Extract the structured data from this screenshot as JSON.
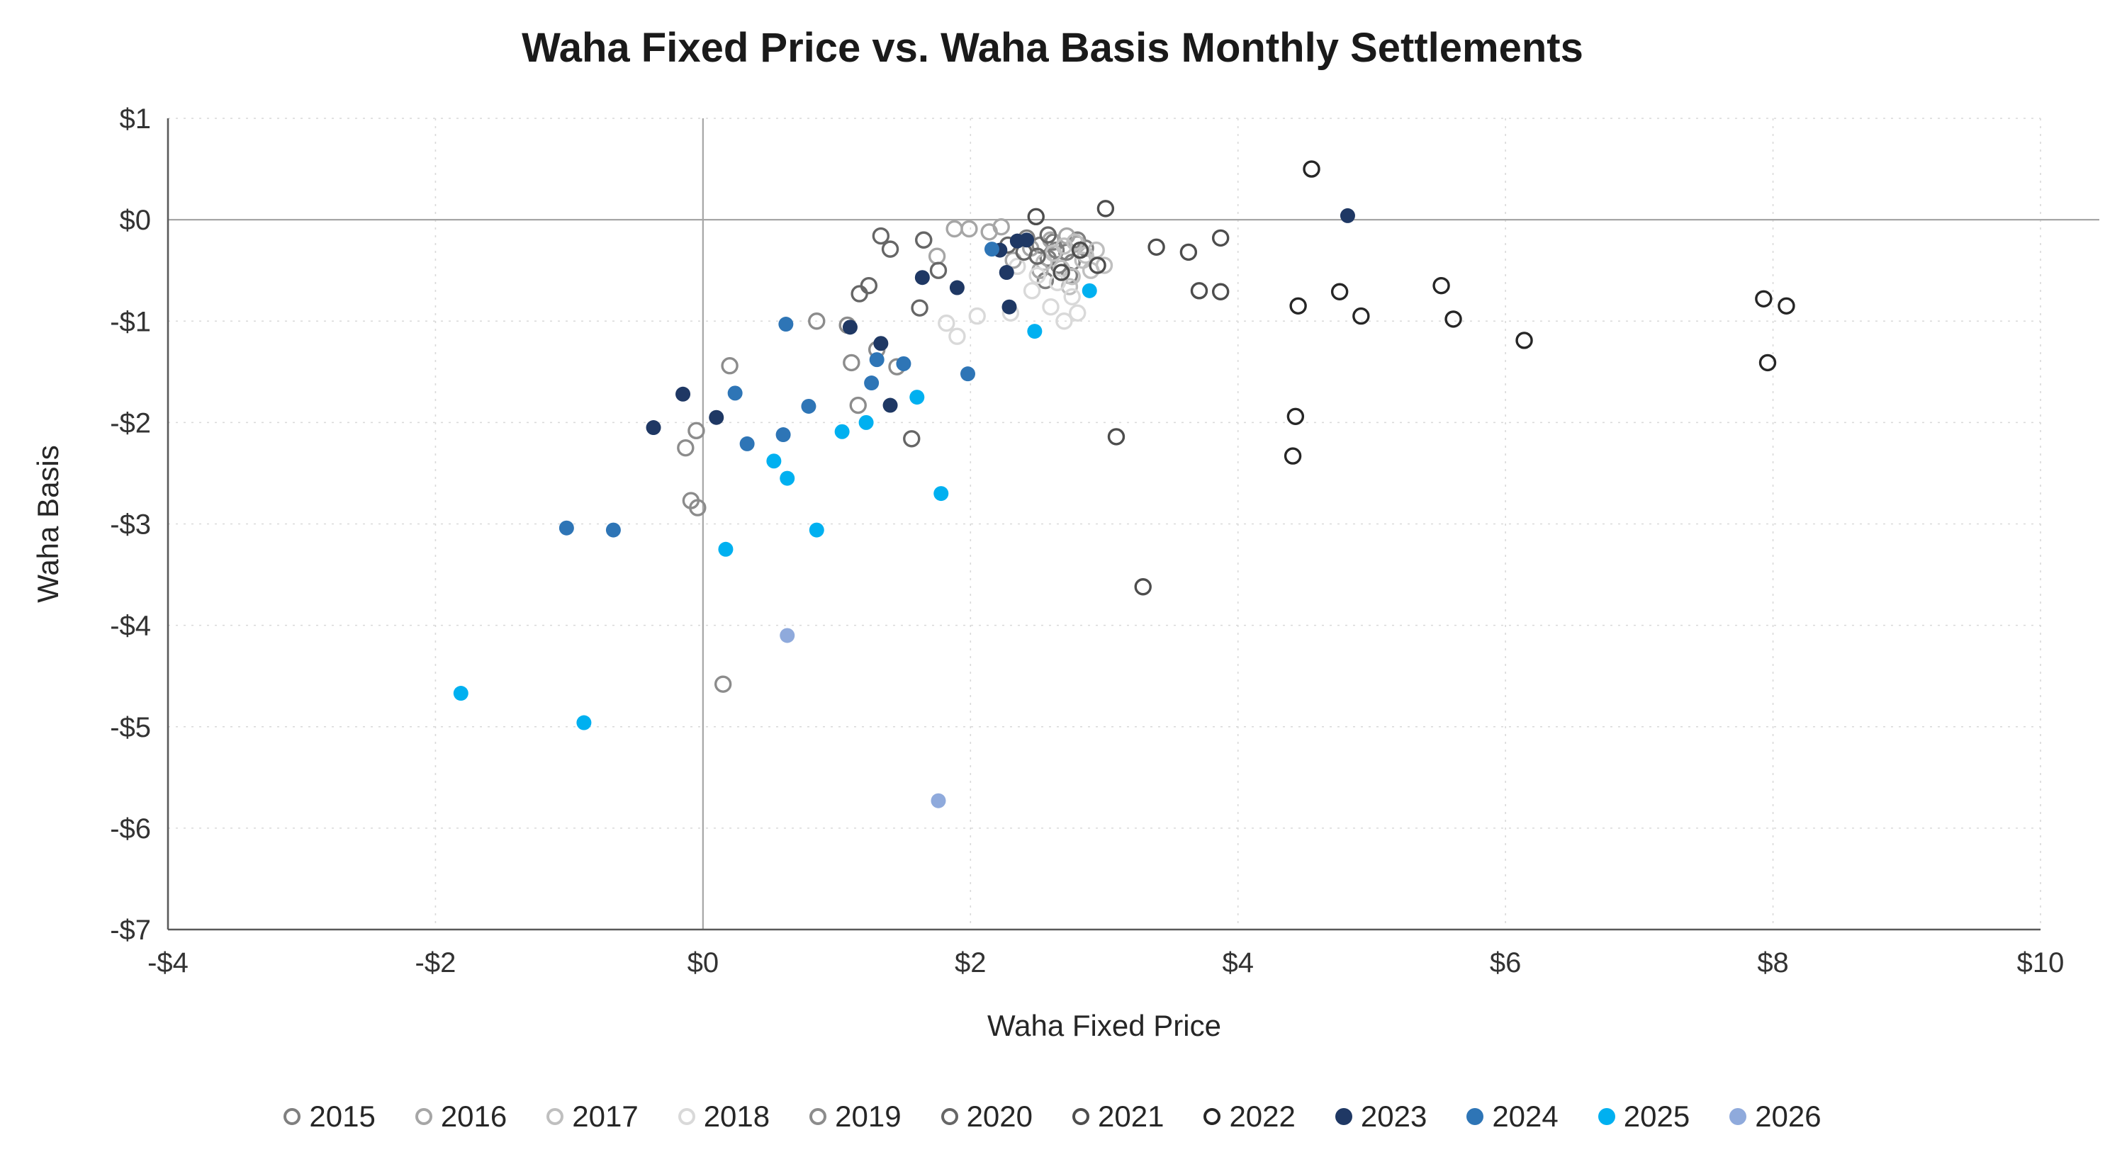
{
  "chart_data": {
    "type": "scatter",
    "title": "Waha Fixed Price vs. Waha Basis Monthly Settlements",
    "xlabel": "Waha Fixed Price",
    "ylabel": "Waha Basis",
    "xlim": [
      -4,
      10
    ],
    "ylim": [
      -7,
      1
    ],
    "grid": true,
    "legend_position": "bottom",
    "x_ticks": [
      {
        "value": -4,
        "label": "-$4"
      },
      {
        "value": -2,
        "label": "-$2"
      },
      {
        "value": 0,
        "label": "$0"
      },
      {
        "value": 2,
        "label": "$2"
      },
      {
        "value": 4,
        "label": "$4"
      },
      {
        "value": 6,
        "label": "$6"
      },
      {
        "value": 8,
        "label": "$8"
      },
      {
        "value": 10,
        "label": "$10"
      }
    ],
    "y_ticks": [
      {
        "value": 1,
        "label": "$1"
      },
      {
        "value": 0,
        "label": "$0"
      },
      {
        "value": -1,
        "label": "-$1"
      },
      {
        "value": -2,
        "label": "-$2"
      },
      {
        "value": -3,
        "label": "-$3"
      },
      {
        "value": -4,
        "label": "-$4"
      },
      {
        "value": -5,
        "label": "-$5"
      },
      {
        "value": -6,
        "label": "-$6"
      },
      {
        "value": -7,
        "label": "-$7"
      }
    ],
    "series": [
      {
        "name": "2015",
        "marker": "open",
        "color": "#7f7f7f",
        "points": [
          [
            2.42,
            -0.18
          ],
          [
            2.52,
            -0.25
          ],
          [
            2.62,
            -0.22
          ],
          [
            2.72,
            -0.32
          ],
          [
            2.8,
            -0.2
          ],
          [
            2.58,
            -0.38
          ],
          [
            2.66,
            -0.45
          ],
          [
            2.74,
            -0.55
          ],
          [
            2.56,
            -0.6
          ],
          [
            2.64,
            -0.3
          ],
          [
            2.76,
            -0.42
          ],
          [
            2.86,
            -0.28
          ]
        ]
      },
      {
        "name": "2016",
        "marker": "open",
        "color": "#a6a6a6",
        "points": [
          [
            1.75,
            -0.36
          ],
          [
            1.88,
            -0.09
          ],
          [
            1.99,
            -0.09
          ],
          [
            2.14,
            -0.12
          ],
          [
            2.23,
            -0.07
          ],
          [
            2.45,
            -0.28
          ],
          [
            2.6,
            -0.2
          ],
          [
            2.72,
            -0.16
          ],
          [
            2.32,
            -0.4
          ],
          [
            1.65,
            -0.2
          ],
          [
            2.52,
            -0.5
          ],
          [
            2.8,
            -0.24
          ]
        ]
      },
      {
        "name": "2017",
        "marker": "open",
        "color": "#bfbfbf",
        "points": [
          [
            2.62,
            -0.33
          ],
          [
            2.7,
            -0.26
          ],
          [
            2.78,
            -0.22
          ],
          [
            2.86,
            -0.35
          ],
          [
            2.94,
            -0.3
          ],
          [
            3.0,
            -0.45
          ],
          [
            2.55,
            -0.42
          ],
          [
            2.68,
            -0.48
          ],
          [
            2.76,
            -0.56
          ],
          [
            2.84,
            -0.4
          ],
          [
            2.9,
            -0.5
          ],
          [
            2.74,
            -0.66
          ]
        ]
      },
      {
        "name": "2018",
        "marker": "open",
        "color": "#d9d9d9",
        "points": [
          [
            2.35,
            -0.46
          ],
          [
            2.5,
            -0.55
          ],
          [
            2.65,
            -0.62
          ],
          [
            2.76,
            -0.76
          ],
          [
            2.6,
            -0.86
          ],
          [
            2.46,
            -0.7
          ],
          [
            2.3,
            -0.92
          ],
          [
            2.7,
            -1.0
          ],
          [
            2.8,
            -0.92
          ],
          [
            1.82,
            -1.02
          ],
          [
            1.9,
            -1.15
          ],
          [
            2.05,
            -0.95
          ]
        ]
      },
      {
        "name": "2019",
        "marker": "open",
        "color": "#8c8c8c",
        "points": [
          [
            0.2,
            -1.44
          ],
          [
            -0.05,
            -2.08
          ],
          [
            -0.13,
            -2.25
          ],
          [
            -0.04,
            -2.84
          ],
          [
            -0.09,
            -2.77
          ],
          [
            0.15,
            -4.58
          ],
          [
            0.85,
            -1.0
          ],
          [
            1.08,
            -1.04
          ],
          [
            1.11,
            -1.41
          ],
          [
            1.16,
            -1.83
          ],
          [
            1.3,
            -1.28
          ],
          [
            1.45,
            -1.45
          ]
        ]
      },
      {
        "name": "2020",
        "marker": "open",
        "color": "#666666",
        "points": [
          [
            1.33,
            -0.16
          ],
          [
            1.4,
            -0.29
          ],
          [
            1.65,
            -0.2
          ],
          [
            1.24,
            -0.65
          ],
          [
            1.17,
            -0.73
          ],
          [
            1.62,
            -0.87
          ],
          [
            1.56,
            -2.16
          ],
          [
            2.28,
            -0.25
          ],
          [
            2.4,
            -0.32
          ],
          [
            1.76,
            -0.5
          ],
          [
            2.5,
            -0.36
          ],
          [
            2.58,
            -0.15
          ]
        ]
      },
      {
        "name": "2021",
        "marker": "open",
        "color": "#4d4d4d",
        "points": [
          [
            2.49,
            0.03
          ],
          [
            3.01,
            0.11
          ],
          [
            3.39,
            -0.27
          ],
          [
            3.63,
            -0.32
          ],
          [
            3.87,
            -0.18
          ],
          [
            3.71,
            -0.7
          ],
          [
            3.87,
            -0.71
          ],
          [
            3.09,
            -2.14
          ],
          [
            3.29,
            -3.62
          ],
          [
            2.95,
            -0.45
          ],
          [
            2.82,
            -0.3
          ],
          [
            2.68,
            -0.52
          ]
        ]
      },
      {
        "name": "2022",
        "marker": "open",
        "color": "#262626",
        "points": [
          [
            4.55,
            0.5
          ],
          [
            4.45,
            -0.85
          ],
          [
            4.76,
            -0.71
          ],
          [
            4.92,
            -0.95
          ],
          [
            5.52,
            -0.65
          ],
          [
            5.61,
            -0.98
          ],
          [
            6.14,
            -1.19
          ],
          [
            7.93,
            -0.78
          ],
          [
            8.1,
            -0.85
          ],
          [
            7.96,
            -1.41
          ],
          [
            4.43,
            -1.94
          ],
          [
            4.41,
            -2.33
          ]
        ]
      },
      {
        "name": "2023",
        "marker": "filled",
        "color": "#1f3864",
        "points": [
          [
            -0.37,
            -2.05
          ],
          [
            -0.15,
            -1.72
          ],
          [
            0.1,
            -1.95
          ],
          [
            1.1,
            -1.06
          ],
          [
            1.33,
            -1.22
          ],
          [
            1.4,
            -1.83
          ],
          [
            1.64,
            -0.57
          ],
          [
            1.9,
            -0.67
          ],
          [
            2.22,
            -0.3
          ],
          [
            2.27,
            -0.52
          ],
          [
            2.29,
            -0.86
          ],
          [
            2.35,
            -0.21
          ],
          [
            2.42,
            -0.2
          ],
          [
            4.82,
            0.04
          ]
        ]
      },
      {
        "name": "2024",
        "marker": "filled",
        "color": "#2e75b6",
        "points": [
          [
            -1.02,
            -3.04
          ],
          [
            -0.67,
            -3.06
          ],
          [
            0.24,
            -1.71
          ],
          [
            0.33,
            -2.21
          ],
          [
            0.6,
            -2.12
          ],
          [
            0.62,
            -1.03
          ],
          [
            0.79,
            -1.84
          ],
          [
            1.26,
            -1.61
          ],
          [
            1.3,
            -1.38
          ],
          [
            1.5,
            -1.42
          ],
          [
            1.98,
            -1.52
          ],
          [
            2.16,
            -0.29
          ]
        ]
      },
      {
        "name": "2025",
        "marker": "filled",
        "color": "#00b0f0",
        "points": [
          [
            -1.81,
            -4.67
          ],
          [
            -0.89,
            -4.96
          ],
          [
            0.17,
            -3.25
          ],
          [
            0.53,
            -2.38
          ],
          [
            0.63,
            -2.55
          ],
          [
            0.85,
            -3.06
          ],
          [
            1.04,
            -2.09
          ],
          [
            1.22,
            -2.0
          ],
          [
            1.6,
            -1.75
          ],
          [
            1.78,
            -2.7
          ],
          [
            2.48,
            -1.1
          ],
          [
            2.89,
            -0.7
          ]
        ]
      },
      {
        "name": "2026",
        "marker": "filled",
        "color": "#8faadc",
        "points": [
          [
            0.63,
            -4.1
          ],
          [
            1.76,
            -5.73
          ]
        ]
      }
    ],
    "colors": {
      "zero_line": "#a6a6a6",
      "axis_line": "#595959",
      "gridline": "#d9d9d9",
      "tick_text": "#333333",
      "title_text": "#1a1a1a"
    }
  }
}
